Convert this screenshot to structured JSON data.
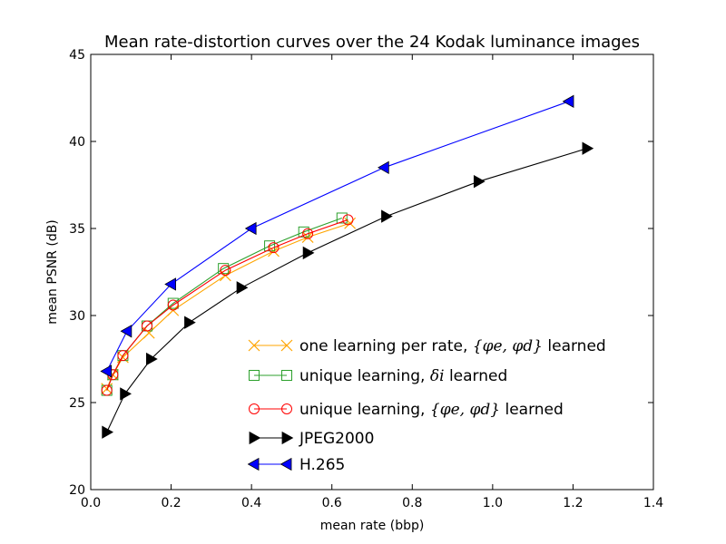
{
  "chart_data": {
    "type": "line",
    "title": "Mean rate-distortion curves over the 24 Kodak luminance images",
    "xlabel": "mean rate (bbp)",
    "ylabel": "mean PSNR (dB)",
    "xlim": [
      0.0,
      1.4
    ],
    "ylim": [
      20,
      45
    ],
    "xticks": [
      "0.0",
      "0.2",
      "0.4",
      "0.6",
      "0.8",
      "1.0",
      "1.2",
      "1.4"
    ],
    "yticks": [
      "20",
      "25",
      "30",
      "35",
      "40",
      "45"
    ],
    "grid": false,
    "legend_position": "bottom-right",
    "series": [
      {
        "name": "one learning per rate, {φe, φd} learned",
        "legend_text": "one learning per rate, ",
        "legend_math": "{φe, φd}",
        "legend_suffix": " learned",
        "color": "#ffa500",
        "marker": "x",
        "x": [
          0.04,
          0.055,
          0.08,
          0.145,
          0.205,
          0.335,
          0.455,
          0.54,
          0.645
        ],
        "y": [
          25.8,
          26.6,
          27.6,
          29.0,
          30.3,
          32.3,
          33.7,
          34.5,
          35.3
        ]
      },
      {
        "name": "unique learning, δi learned",
        "legend_text": "unique learning, ",
        "legend_math": "δi",
        "legend_suffix": " learned",
        "color": "#2ca02c",
        "marker": "square",
        "x": [
          0.04,
          0.055,
          0.08,
          0.14,
          0.205,
          0.33,
          0.445,
          0.53,
          0.625
        ],
        "y": [
          25.7,
          26.6,
          27.7,
          29.4,
          30.7,
          32.7,
          34.0,
          34.8,
          35.6
        ]
      },
      {
        "name": "unique learning, {φe, φd} learned",
        "legend_text": "unique learning, ",
        "legend_math": "{φe, φd}",
        "legend_suffix": " learned",
        "color": "#ff0000",
        "marker": "circle",
        "x": [
          0.04,
          0.055,
          0.08,
          0.14,
          0.205,
          0.335,
          0.455,
          0.54,
          0.64
        ],
        "y": [
          25.7,
          26.6,
          27.7,
          29.4,
          30.6,
          32.6,
          33.9,
          34.7,
          35.5
        ]
      },
      {
        "name": "JPEG2000",
        "color": "#000000",
        "marker": "triangle-right",
        "x": [
          0.04,
          0.085,
          0.15,
          0.245,
          0.375,
          0.54,
          0.735,
          0.965,
          1.235
        ],
        "y": [
          23.3,
          25.5,
          27.5,
          29.6,
          31.6,
          33.6,
          35.7,
          37.7,
          39.6
        ]
      },
      {
        "name": "H.265",
        "color": "#0000ff",
        "marker": "triangle-left",
        "x": [
          0.04,
          0.09,
          0.2,
          0.4,
          0.73,
          1.19
        ],
        "y": [
          26.8,
          29.1,
          31.8,
          35.0,
          38.5,
          42.3
        ]
      }
    ]
  }
}
